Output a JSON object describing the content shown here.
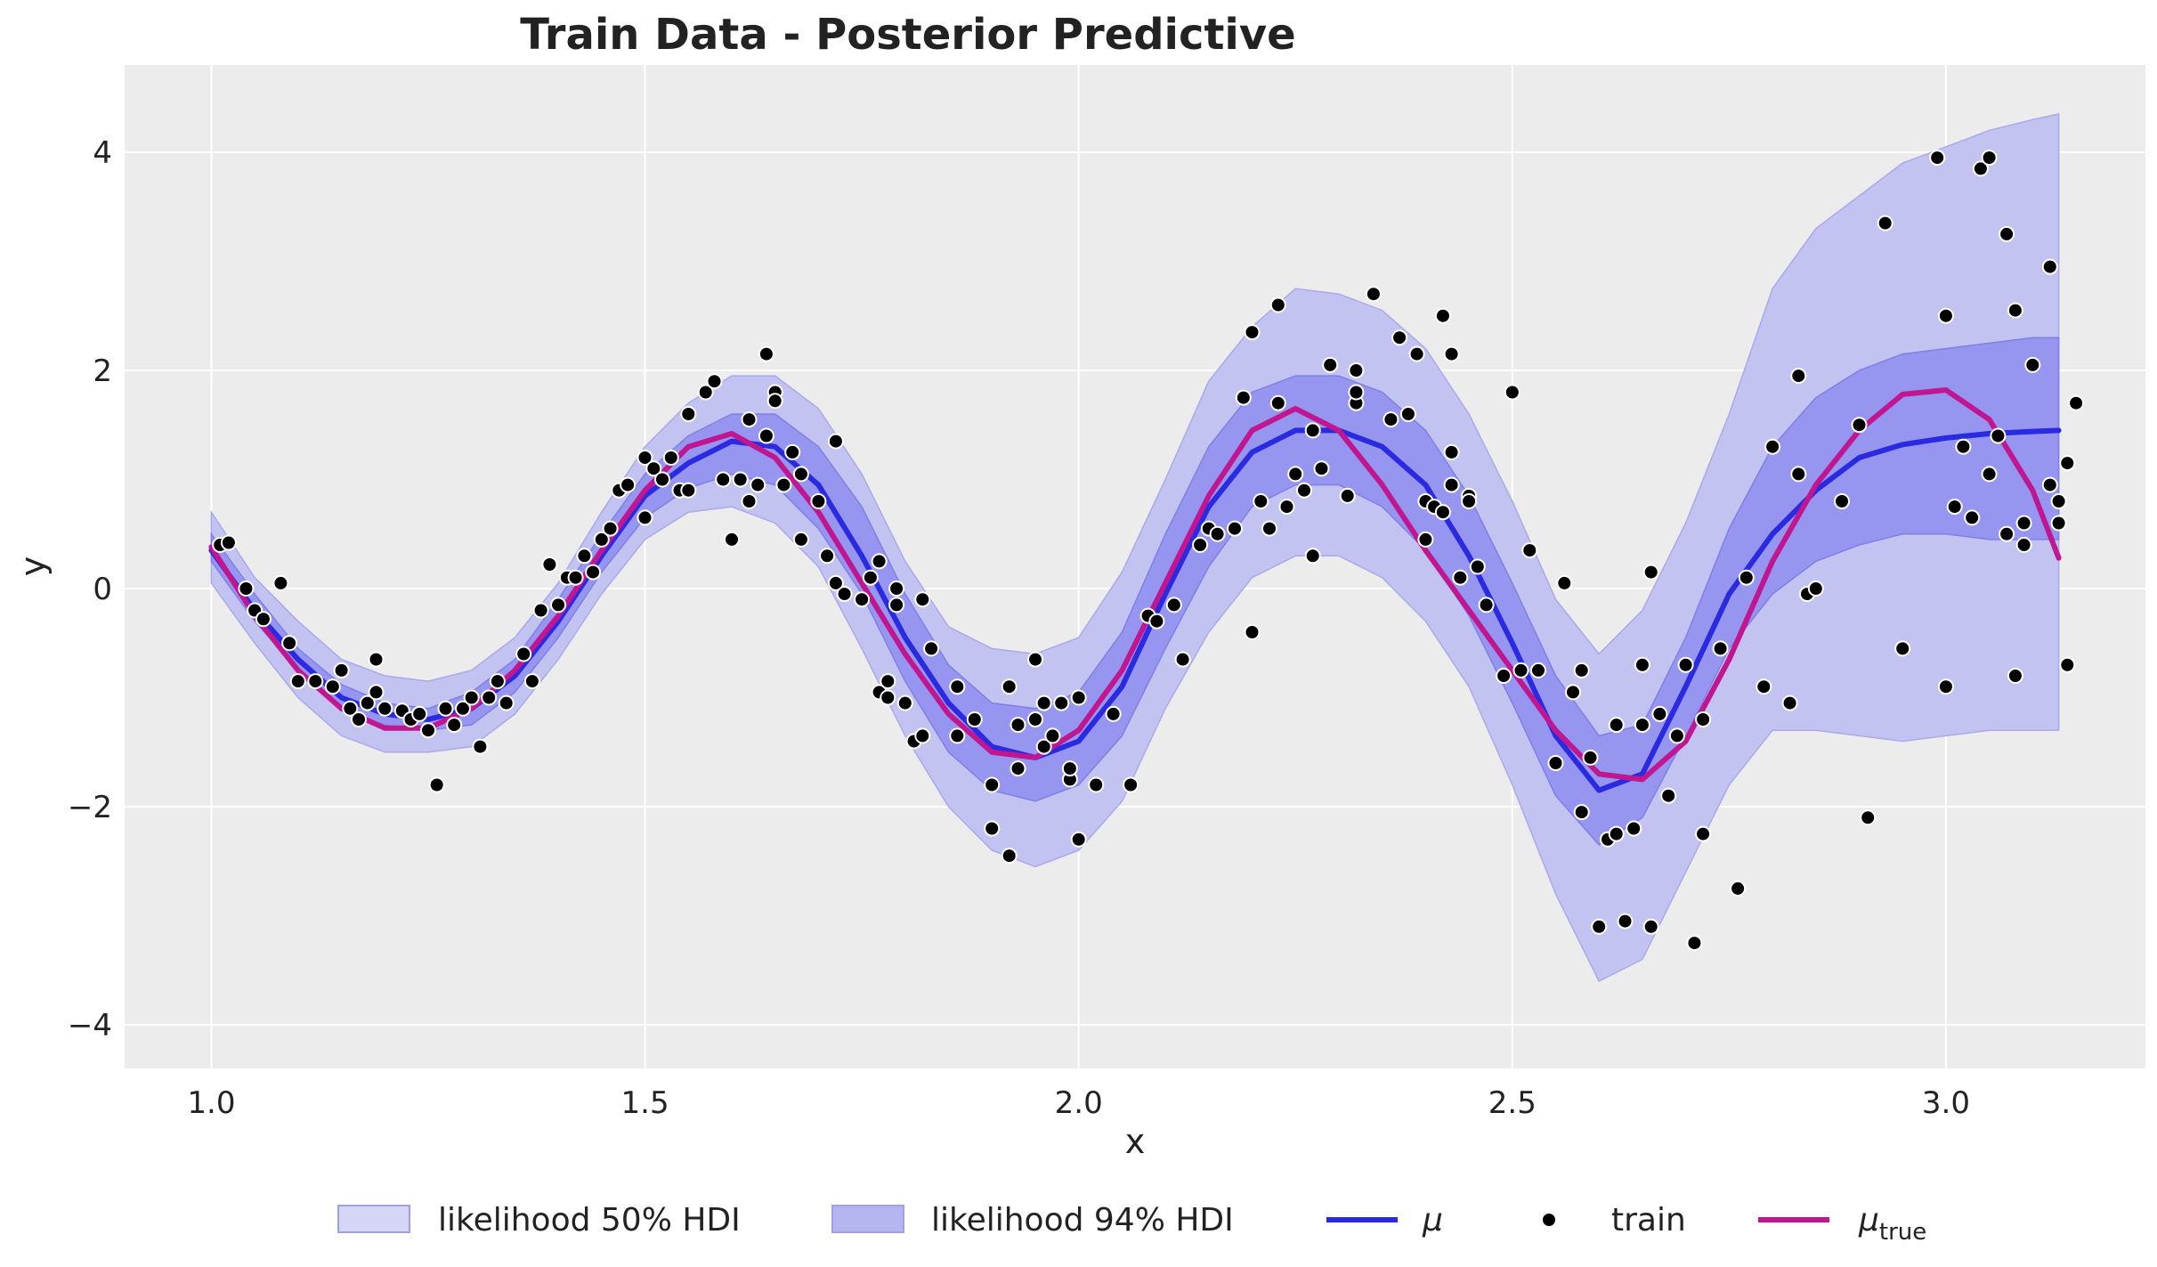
{
  "chart_data": {
    "type": "line",
    "title": "Train Data - Posterior Predictive",
    "xlabel": "x",
    "ylabel": "y",
    "xlim": [
      0.9,
      3.23
    ],
    "ylim": [
      -4.4,
      4.8
    ],
    "xticks": [
      1.0,
      1.5,
      2.0,
      2.5,
      3.0
    ],
    "xtick_labels": [
      "1.0",
      "1.5",
      "2.0",
      "2.5",
      "3.0"
    ],
    "yticks": [
      -4,
      -2,
      0,
      2,
      4
    ],
    "ytick_labels": [
      "−4",
      "−2",
      "0",
      "2",
      "4"
    ],
    "grid": true,
    "legend_position": "bottom-center",
    "colors": {
      "panel_bg": "#ececec",
      "grid": "#ffffff",
      "band_94": "#8e8ef0",
      "band_50": "#c3c3f2",
      "mu": "#2a2ae0",
      "mu_true": "#c0168f",
      "train": "#000000"
    },
    "legend": [
      {
        "label": "likelihood 50% HDI",
        "kind": "band50"
      },
      {
        "label": "likelihood 94% HDI",
        "kind": "band94"
      },
      {
        "label": "μ",
        "kind": "mu"
      },
      {
        "label": "train",
        "kind": "point"
      },
      {
        "label": "μ",
        "sub": "true",
        "kind": "mutrue"
      }
    ],
    "x": [
      1.0,
      1.05,
      1.1,
      1.15,
      1.2,
      1.25,
      1.3,
      1.35,
      1.4,
      1.45,
      1.5,
      1.55,
      1.6,
      1.65,
      1.7,
      1.75,
      1.8,
      1.85,
      1.9,
      1.95,
      2.0,
      2.05,
      2.1,
      2.15,
      2.2,
      2.25,
      2.3,
      2.35,
      2.4,
      2.45,
      2.5,
      2.55,
      2.6,
      2.65,
      2.7,
      2.75,
      2.8,
      2.85,
      2.9,
      2.95,
      3.0,
      3.05,
      3.1,
      3.13
    ],
    "series": [
      {
        "name": "μ",
        "values": [
          0.35,
          -0.2,
          -0.65,
          -1.0,
          -1.15,
          -1.2,
          -1.1,
          -0.8,
          -0.3,
          0.3,
          0.85,
          1.15,
          1.35,
          1.3,
          0.95,
          0.3,
          -0.45,
          -1.05,
          -1.45,
          -1.55,
          -1.4,
          -0.9,
          -0.05,
          0.75,
          1.25,
          1.45,
          1.45,
          1.3,
          0.95,
          0.3,
          -0.5,
          -1.35,
          -1.85,
          -1.7,
          -0.9,
          -0.05,
          0.5,
          0.9,
          1.2,
          1.32,
          1.38,
          1.42,
          1.44,
          1.45
        ]
      },
      {
        "name": "μtrue",
        "values": [
          0.38,
          -0.25,
          -0.75,
          -1.1,
          -1.28,
          -1.28,
          -1.1,
          -0.75,
          -0.25,
          0.35,
          0.9,
          1.3,
          1.42,
          1.2,
          0.7,
          0.05,
          -0.6,
          -1.15,
          -1.5,
          -1.55,
          -1.3,
          -0.75,
          0.05,
          0.85,
          1.45,
          1.65,
          1.45,
          0.95,
          0.35,
          -0.2,
          -0.75,
          -1.3,
          -1.7,
          -1.75,
          -1.4,
          -0.65,
          0.25,
          0.95,
          1.45,
          1.78,
          1.82,
          1.55,
          0.9,
          0.28
        ]
      }
    ],
    "band_94": {
      "lower": [
        0.05,
        -0.5,
        -1.0,
        -1.35,
        -1.5,
        -1.5,
        -1.45,
        -1.15,
        -0.65,
        -0.05,
        0.45,
        0.7,
        0.75,
        0.6,
        0.2,
        -0.55,
        -1.35,
        -2.0,
        -2.4,
        -2.55,
        -2.4,
        -1.95,
        -1.1,
        -0.4,
        0.1,
        0.3,
        0.3,
        0.1,
        -0.3,
        -0.9,
        -1.8,
        -2.8,
        -3.6,
        -3.4,
        -2.6,
        -1.8,
        -1.3,
        -1.3,
        -1.35,
        -1.4,
        -1.35,
        -1.3,
        -1.3,
        -1.3
      ],
      "upper": [
        0.7,
        0.1,
        -0.3,
        -0.65,
        -0.8,
        -0.85,
        -0.75,
        -0.45,
        0.05,
        0.7,
        1.3,
        1.7,
        1.95,
        1.95,
        1.65,
        1.05,
        0.25,
        -0.35,
        -0.55,
        -0.6,
        -0.45,
        0.15,
        1.0,
        1.9,
        2.4,
        2.75,
        2.7,
        2.55,
        2.2,
        1.6,
        0.8,
        -0.1,
        -0.6,
        -0.2,
        0.6,
        1.6,
        2.75,
        3.3,
        3.6,
        3.9,
        4.05,
        4.2,
        4.3,
        4.35
      ]
    },
    "band_50": {
      "lower": [
        0.25,
        -0.3,
        -0.75,
        -1.12,
        -1.25,
        -1.3,
        -1.25,
        -0.95,
        -0.45,
        0.15,
        0.65,
        0.92,
        1.05,
        0.95,
        0.55,
        -0.05,
        -0.85,
        -1.5,
        -1.85,
        -1.95,
        -1.8,
        -1.35,
        -0.55,
        0.2,
        0.75,
        0.95,
        0.95,
        0.75,
        0.35,
        -0.25,
        -1.05,
        -1.9,
        -2.35,
        -2.1,
        -1.35,
        -0.55,
        -0.05,
        0.25,
        0.4,
        0.5,
        0.5,
        0.45,
        0.45,
        0.45
      ],
      "upper": [
        0.5,
        -0.05,
        -0.55,
        -0.88,
        -1.05,
        -1.1,
        -0.95,
        -0.65,
        -0.1,
        0.5,
        1.05,
        1.4,
        1.6,
        1.6,
        1.3,
        0.75,
        -0.05,
        -0.7,
        -1.05,
        -1.1,
        -0.95,
        -0.4,
        0.5,
        1.3,
        1.8,
        1.95,
        1.95,
        1.8,
        1.45,
        0.85,
        0.05,
        -0.8,
        -1.35,
        -1.25,
        -0.45,
        0.55,
        1.3,
        1.75,
        2.0,
        2.15,
        2.2,
        2.25,
        2.3,
        2.3
      ]
    },
    "train": [
      [
        1.01,
        0.4
      ],
      [
        1.02,
        0.42
      ],
      [
        1.04,
        0.0
      ],
      [
        1.05,
        -0.2
      ],
      [
        1.06,
        -0.28
      ],
      [
        1.08,
        0.05
      ],
      [
        1.09,
        -0.5
      ],
      [
        1.1,
        -0.85
      ],
      [
        1.12,
        -0.85
      ],
      [
        1.14,
        -0.9
      ],
      [
        1.15,
        -0.75
      ],
      [
        1.16,
        -1.1
      ],
      [
        1.17,
        -1.2
      ],
      [
        1.18,
        -1.05
      ],
      [
        1.19,
        -0.95
      ],
      [
        1.19,
        -0.65
      ],
      [
        1.2,
        -1.1
      ],
      [
        1.22,
        -1.12
      ],
      [
        1.23,
        -1.2
      ],
      [
        1.24,
        -1.15
      ],
      [
        1.25,
        -1.3
      ],
      [
        1.26,
        -1.8
      ],
      [
        1.27,
        -1.1
      ],
      [
        1.28,
        -1.25
      ],
      [
        1.29,
        -1.1
      ],
      [
        1.3,
        -1.0
      ],
      [
        1.31,
        -1.45
      ],
      [
        1.32,
        -1.0
      ],
      [
        1.33,
        -0.85
      ],
      [
        1.34,
        -1.05
      ],
      [
        1.36,
        -0.6
      ],
      [
        1.37,
        -0.85
      ],
      [
        1.38,
        -0.2
      ],
      [
        1.39,
        0.22
      ],
      [
        1.4,
        -0.15
      ],
      [
        1.41,
        0.1
      ],
      [
        1.42,
        0.1
      ],
      [
        1.43,
        0.3
      ],
      [
        1.44,
        0.15
      ],
      [
        1.45,
        0.45
      ],
      [
        1.46,
        0.55
      ],
      [
        1.47,
        0.9
      ],
      [
        1.48,
        0.95
      ],
      [
        1.5,
        0.65
      ],
      [
        1.5,
        1.2
      ],
      [
        1.51,
        1.1
      ],
      [
        1.52,
        1.0
      ],
      [
        1.53,
        1.2
      ],
      [
        1.54,
        0.9
      ],
      [
        1.55,
        0.9
      ],
      [
        1.55,
        1.6
      ],
      [
        1.57,
        1.8
      ],
      [
        1.58,
        1.9
      ],
      [
        1.59,
        1.0
      ],
      [
        1.6,
        0.45
      ],
      [
        1.61,
        1.0
      ],
      [
        1.62,
        0.8
      ],
      [
        1.62,
        1.55
      ],
      [
        1.63,
        0.95
      ],
      [
        1.64,
        1.4
      ],
      [
        1.64,
        2.15
      ],
      [
        1.65,
        1.8
      ],
      [
        1.65,
        1.72
      ],
      [
        1.66,
        0.95
      ],
      [
        1.67,
        1.25
      ],
      [
        1.68,
        0.45
      ],
      [
        1.68,
        1.05
      ],
      [
        1.7,
        0.8
      ],
      [
        1.71,
        0.3
      ],
      [
        1.72,
        1.35
      ],
      [
        1.72,
        0.05
      ],
      [
        1.73,
        -0.05
      ],
      [
        1.75,
        -0.1
      ],
      [
        1.76,
        0.1
      ],
      [
        1.77,
        0.25
      ],
      [
        1.77,
        -0.95
      ],
      [
        1.78,
        -0.85
      ],
      [
        1.78,
        -1.0
      ],
      [
        1.79,
        0.0
      ],
      [
        1.79,
        -0.15
      ],
      [
        1.8,
        -1.05
      ],
      [
        1.81,
        -1.4
      ],
      [
        1.82,
        -1.35
      ],
      [
        1.82,
        -0.1
      ],
      [
        1.83,
        -0.55
      ],
      [
        1.86,
        -0.9
      ],
      [
        1.86,
        -1.35
      ],
      [
        1.88,
        -1.2
      ],
      [
        1.9,
        -1.8
      ],
      [
        1.9,
        -2.2
      ],
      [
        1.92,
        -2.45
      ],
      [
        1.92,
        -0.9
      ],
      [
        1.93,
        -1.65
      ],
      [
        1.93,
        -1.25
      ],
      [
        1.95,
        -1.2
      ],
      [
        1.95,
        -0.65
      ],
      [
        1.96,
        -1.05
      ],
      [
        1.96,
        -1.45
      ],
      [
        1.97,
        -1.35
      ],
      [
        1.98,
        -1.05
      ],
      [
        1.99,
        -1.75
      ],
      [
        1.99,
        -1.65
      ],
      [
        2.0,
        -2.3
      ],
      [
        2.0,
        -1.0
      ],
      [
        2.02,
        -1.8
      ],
      [
        2.04,
        -1.15
      ],
      [
        2.06,
        -1.8
      ],
      [
        2.08,
        -0.25
      ],
      [
        2.09,
        -0.3
      ],
      [
        2.11,
        -0.15
      ],
      [
        2.12,
        -0.65
      ],
      [
        2.14,
        0.4
      ],
      [
        2.15,
        0.55
      ],
      [
        2.16,
        0.5
      ],
      [
        2.18,
        0.55
      ],
      [
        2.19,
        1.75
      ],
      [
        2.2,
        -0.4
      ],
      [
        2.2,
        2.35
      ],
      [
        2.21,
        0.8
      ],
      [
        2.22,
        0.55
      ],
      [
        2.23,
        2.6
      ],
      [
        2.23,
        1.7
      ],
      [
        2.24,
        0.75
      ],
      [
        2.25,
        1.05
      ],
      [
        2.26,
        0.9
      ],
      [
        2.27,
        1.45
      ],
      [
        2.27,
        0.3
      ],
      [
        2.28,
        1.1
      ],
      [
        2.29,
        2.05
      ],
      [
        2.31,
        0.85
      ],
      [
        2.32,
        1.7
      ],
      [
        2.32,
        1.8
      ],
      [
        2.32,
        2.0
      ],
      [
        2.34,
        2.7
      ],
      [
        2.36,
        1.55
      ],
      [
        2.37,
        2.3
      ],
      [
        2.38,
        1.6
      ],
      [
        2.39,
        2.15
      ],
      [
        2.4,
        0.45
      ],
      [
        2.4,
        0.8
      ],
      [
        2.41,
        0.75
      ],
      [
        2.42,
        2.5
      ],
      [
        2.42,
        0.7
      ],
      [
        2.43,
        0.95
      ],
      [
        2.43,
        2.15
      ],
      [
        2.43,
        1.25
      ],
      [
        2.44,
        0.1
      ],
      [
        2.45,
        0.85
      ],
      [
        2.45,
        0.8
      ],
      [
        2.46,
        0.2
      ],
      [
        2.47,
        -0.15
      ],
      [
        2.49,
        -0.8
      ],
      [
        2.5,
        1.8
      ],
      [
        2.51,
        -0.75
      ],
      [
        2.52,
        0.35
      ],
      [
        2.53,
        -0.75
      ],
      [
        2.55,
        -1.6
      ],
      [
        2.56,
        0.05
      ],
      [
        2.57,
        -0.95
      ],
      [
        2.58,
        -2.05
      ],
      [
        2.58,
        -0.75
      ],
      [
        2.59,
        -1.55
      ],
      [
        2.6,
        -3.1
      ],
      [
        2.61,
        -2.3
      ],
      [
        2.62,
        -1.25
      ],
      [
        2.62,
        -2.25
      ],
      [
        2.63,
        -3.05
      ],
      [
        2.64,
        -2.2
      ],
      [
        2.65,
        -1.25
      ],
      [
        2.65,
        -0.7
      ],
      [
        2.66,
        0.15
      ],
      [
        2.66,
        -3.1
      ],
      [
        2.67,
        -1.15
      ],
      [
        2.68,
        -1.9
      ],
      [
        2.69,
        -1.35
      ],
      [
        2.7,
        -0.7
      ],
      [
        2.71,
        -3.25
      ],
      [
        2.72,
        -1.2
      ],
      [
        2.72,
        -2.25
      ],
      [
        2.74,
        -0.55
      ],
      [
        2.76,
        -2.75
      ],
      [
        2.77,
        0.1
      ],
      [
        2.79,
        -0.9
      ],
      [
        2.8,
        1.3
      ],
      [
        2.82,
        -1.05
      ],
      [
        2.83,
        1.05
      ],
      [
        2.83,
        1.95
      ],
      [
        2.84,
        -0.05
      ],
      [
        2.85,
        0.0
      ],
      [
        2.88,
        0.8
      ],
      [
        2.9,
        1.5
      ],
      [
        2.91,
        -2.1
      ],
      [
        2.93,
        3.35
      ],
      [
        2.95,
        -0.55
      ],
      [
        2.99,
        3.95
      ],
      [
        3.0,
        -0.9
      ],
      [
        3.0,
        2.5
      ],
      [
        3.01,
        0.75
      ],
      [
        3.02,
        1.3
      ],
      [
        3.03,
        0.65
      ],
      [
        3.04,
        3.85
      ],
      [
        3.05,
        3.95
      ],
      [
        3.05,
        1.05
      ],
      [
        3.06,
        1.4
      ],
      [
        3.07,
        3.25
      ],
      [
        3.07,
        0.5
      ],
      [
        3.08,
        2.55
      ],
      [
        3.08,
        -0.8
      ],
      [
        3.09,
        0.4
      ],
      [
        3.09,
        0.6
      ],
      [
        3.1,
        2.05
      ],
      [
        3.12,
        0.95
      ],
      [
        3.12,
        2.95
      ],
      [
        3.13,
        0.8
      ],
      [
        3.13,
        0.6
      ],
      [
        3.14,
        -0.7
      ],
      [
        3.14,
        1.15
      ],
      [
        3.15,
        1.7
      ]
    ]
  }
}
